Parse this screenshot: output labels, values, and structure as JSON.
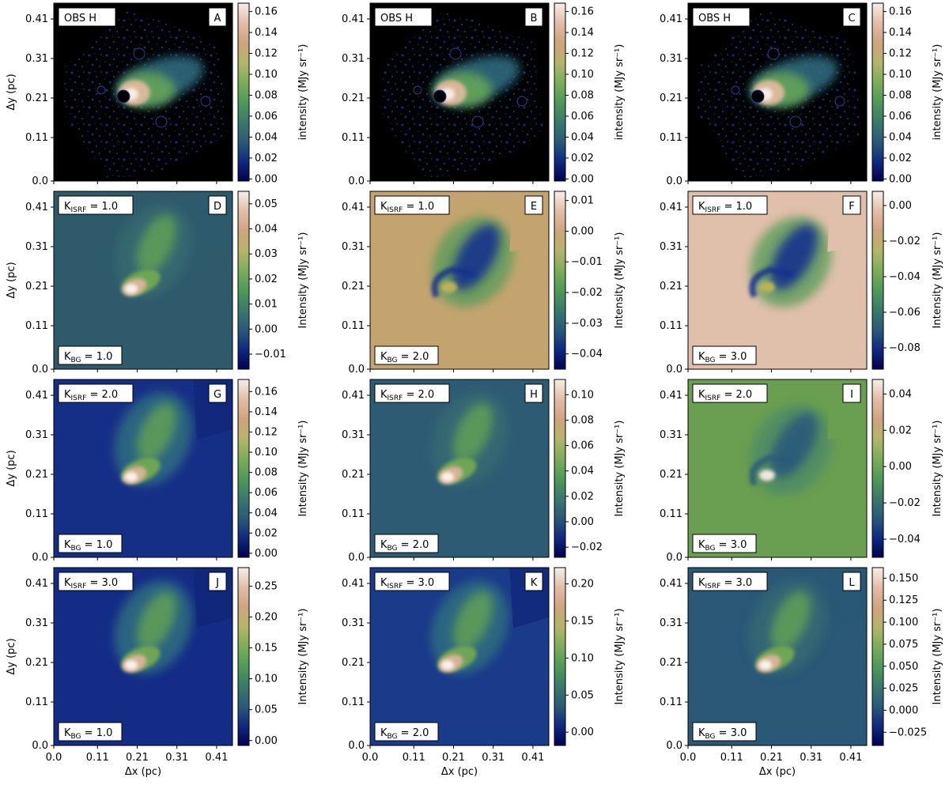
{
  "figure": {
    "xlabel": "Δx (pc)",
    "ylabel": "Δy (pc)",
    "ticks": [
      "0.0",
      "0.11",
      "0.21",
      "0.31",
      "0.41"
    ],
    "tick_values": [
      0.0,
      0.11,
      0.21,
      0.31,
      0.41
    ]
  },
  "colormap": [
    "#000050",
    "#102a80",
    "#2b5a78",
    "#3a7a6a",
    "#4f9a58",
    "#7cad5a",
    "#b5b56a",
    "#cfa47f",
    "#e2bda8",
    "#f7eee8"
  ],
  "chart_data": [
    {
      "type": "heatmap",
      "panel": "A",
      "row": 0,
      "col": 0,
      "top_label": "OBS H",
      "bottom_label": "",
      "cbar_label": "intensity (MJy sr⁻¹)",
      "cbar_ticks": [
        "0.00",
        "0.02",
        "0.04",
        "0.06",
        "0.08",
        "0.10",
        "0.12",
        "0.14",
        "0.16"
      ],
      "cbar_min": -0.002,
      "cbar_max": 0.168,
      "background": "#000000",
      "style": "obs"
    },
    {
      "type": "heatmap",
      "panel": "B",
      "row": 0,
      "col": 1,
      "top_label": "OBS H",
      "bottom_label": "",
      "cbar_label": "intensity (MJy sr⁻¹)",
      "cbar_ticks": [
        "0.00",
        "0.02",
        "0.04",
        "0.06",
        "0.08",
        "0.10",
        "0.12",
        "0.14",
        "0.16"
      ],
      "cbar_min": -0.002,
      "cbar_max": 0.168,
      "background": "#000000",
      "style": "obs"
    },
    {
      "type": "heatmap",
      "panel": "C",
      "row": 0,
      "col": 2,
      "top_label": "OBS H",
      "bottom_label": "",
      "cbar_label": "intensity (MJy sr⁻¹)",
      "cbar_ticks": [
        "0.00",
        "0.02",
        "0.04",
        "0.06",
        "0.08",
        "0.10",
        "0.12",
        "0.14",
        "0.16"
      ],
      "cbar_min": -0.002,
      "cbar_max": 0.168,
      "background": "#000000",
      "style": "obs"
    },
    {
      "type": "heatmap",
      "panel": "D",
      "row": 1,
      "col": 0,
      "top_label": "K_ISRF = 1.0",
      "bottom_label": "K_BG = 1.0",
      "cbar_label": "Intensity (MJy sr⁻¹)",
      "cbar_ticks": [
        "0.05",
        "0.04",
        "0.03",
        "0.02",
        "0.01",
        "0.00",
        "−0.01"
      ],
      "cbar_tick_values": [
        0.05,
        0.04,
        0.03,
        0.02,
        0.01,
        0.0,
        -0.01
      ],
      "cbar_min": -0.016,
      "cbar_max": 0.055,
      "background": "#2e5a6c",
      "style": "residual_bright"
    },
    {
      "type": "heatmap",
      "panel": "E",
      "row": 1,
      "col": 1,
      "top_label": "K_ISRF = 1.0",
      "bottom_label": "K_BG = 2.0",
      "cbar_label": "Intensity (MJy sr⁻¹)",
      "cbar_ticks": [
        "0.01",
        "0.00",
        "−0.01",
        "−0.02",
        "−0.03",
        "−0.04"
      ],
      "cbar_tick_values": [
        0.01,
        0.0,
        -0.01,
        -0.02,
        -0.03,
        -0.04
      ],
      "cbar_min": -0.045,
      "cbar_max": 0.013,
      "background": "#c3a46e",
      "style": "residual_dark"
    },
    {
      "type": "heatmap",
      "panel": "F",
      "row": 1,
      "col": 2,
      "top_label": "K_ISRF = 1.0",
      "bottom_label": "K_BG = 3.0",
      "cbar_label": "Intensity (MJy sr⁻¹)",
      "cbar_ticks": [
        "0.00",
        "−0.02",
        "−0.04",
        "−0.06",
        "−0.08"
      ],
      "cbar_tick_values": [
        0.0,
        -0.02,
        -0.04,
        -0.06,
        -0.08
      ],
      "cbar_min": -0.092,
      "cbar_max": 0.008,
      "background": "#e0c0aa",
      "style": "residual_dark"
    },
    {
      "type": "heatmap",
      "panel": "G",
      "row": 2,
      "col": 0,
      "top_label": "K_ISRF = 2.0",
      "bottom_label": "K_BG = 1.0",
      "cbar_label": "Intensity (MJy sr⁻¹)",
      "cbar_ticks": [
        "0.16",
        "0.14",
        "0.12",
        "0.10",
        "0.08",
        "0.06",
        "0.04",
        "0.02",
        "0.00"
      ],
      "cbar_tick_values": [
        0.16,
        0.14,
        0.12,
        0.1,
        0.08,
        0.06,
        0.04,
        0.02,
        0.0
      ],
      "cbar_min": -0.004,
      "cbar_max": 0.172,
      "background": "#162f86",
      "style": "model"
    },
    {
      "type": "heatmap",
      "panel": "H",
      "row": 2,
      "col": 1,
      "top_label": "K_ISRF = 2.0",
      "bottom_label": "K_BG = 2.0",
      "cbar_label": "Intensity (MJy sr⁻¹)",
      "cbar_ticks": [
        "0.10",
        "0.08",
        "0.06",
        "0.04",
        "0.02",
        "0.00",
        "−0.02"
      ],
      "cbar_tick_values": [
        0.1,
        0.08,
        0.06,
        0.04,
        0.02,
        0.0,
        -0.02
      ],
      "cbar_min": -0.028,
      "cbar_max": 0.112,
      "background": "#2d5b73",
      "style": "residual_bright"
    },
    {
      "type": "heatmap",
      "panel": "I",
      "row": 2,
      "col": 2,
      "top_label": "K_ISRF = 2.0",
      "bottom_label": "K_BG = 3.0",
      "cbar_label": "Intensity (MJy sr⁻¹)",
      "cbar_ticks": [
        "0.04",
        "0.02",
        "0.00",
        "−0.02",
        "−0.04"
      ],
      "cbar_tick_values": [
        0.04,
        0.02,
        0.0,
        -0.02,
        -0.04
      ],
      "cbar_min": -0.05,
      "cbar_max": 0.048,
      "background": "#6a9e50",
      "style": "residual_mid"
    },
    {
      "type": "heatmap",
      "panel": "J",
      "row": 3,
      "col": 0,
      "top_label": "K_ISRF = 3.0",
      "bottom_label": "K_BG = 1.0",
      "cbar_label": "Intensity (MJy sr⁻¹)",
      "cbar_ticks": [
        "0.25",
        "0.20",
        "0.15",
        "0.10",
        "0.05",
        "0.00"
      ],
      "cbar_tick_values": [
        0.25,
        0.2,
        0.15,
        0.1,
        0.05,
        0.0
      ],
      "cbar_min": -0.008,
      "cbar_max": 0.28,
      "background": "#142c86",
      "style": "model"
    },
    {
      "type": "heatmap",
      "panel": "K",
      "row": 3,
      "col": 1,
      "top_label": "K_ISRF = 3.0",
      "bottom_label": "K_BG = 2.0",
      "cbar_label": "Intensity (MJy sr⁻¹)",
      "cbar_ticks": [
        "0.20",
        "0.15",
        "0.10",
        "0.05",
        "0.00"
      ],
      "cbar_tick_values": [
        0.2,
        0.15,
        0.1,
        0.05,
        0.0
      ],
      "cbar_min": -0.018,
      "cbar_max": 0.222,
      "background": "#1a3a8a",
      "style": "model"
    },
    {
      "type": "heatmap",
      "panel": "L",
      "row": 3,
      "col": 2,
      "top_label": "K_ISRF = 3.0",
      "bottom_label": "K_BG = 3.0",
      "cbar_label": "Intensity (MJy sr⁻¹)",
      "cbar_ticks": [
        "0.150",
        "0.125",
        "0.100",
        "0.075",
        "0.050",
        "0.025",
        "0.000",
        "−0.025"
      ],
      "cbar_tick_values": [
        0.15,
        0.125,
        0.1,
        0.075,
        0.05,
        0.025,
        0.0,
        -0.025
      ],
      "cbar_min": -0.04,
      "cbar_max": 0.162,
      "background": "#2a5876",
      "style": "residual_bright"
    }
  ]
}
